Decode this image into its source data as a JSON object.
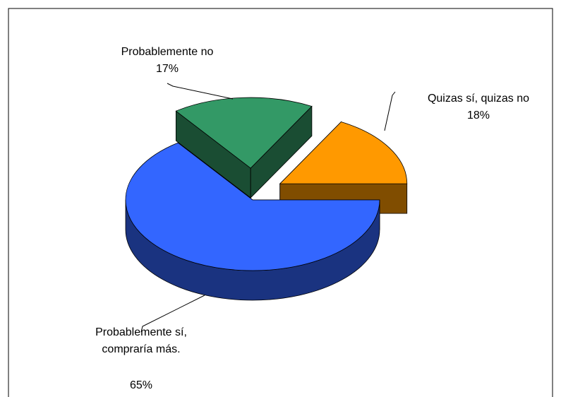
{
  "chart_data": {
    "type": "pie3d",
    "categories": [
      "Probablemente sí, compraría más.",
      "Quizas sí, quizas no",
      "Probablemente no"
    ],
    "values": [
      65,
      18,
      17
    ],
    "value_labels": [
      "65%",
      "18%",
      "17%"
    ],
    "colors": [
      "#3366ff",
      "#339966",
      "#ff9900"
    ]
  }
}
